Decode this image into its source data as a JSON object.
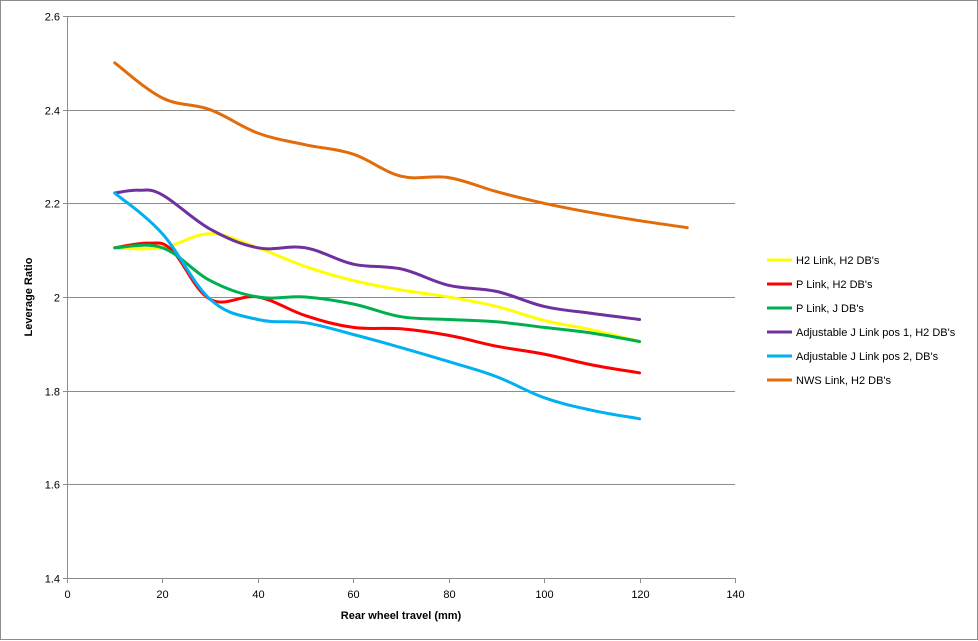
{
  "chart_data": {
    "type": "line",
    "title": "",
    "xlabel": "Rear wheel travel (mm)",
    "ylabel": "Leverage Ratio",
    "xlim": [
      0,
      140
    ],
    "ylim": [
      1.4,
      2.6
    ],
    "xticks": [
      0,
      20,
      40,
      60,
      80,
      100,
      120,
      140
    ],
    "yticks": [
      1.4,
      1.6,
      1.8,
      2,
      2.2,
      2.4,
      2.6
    ],
    "ytick_labels": [
      "1.4",
      "1.6",
      "1.8",
      "2",
      "2.2",
      "2.4",
      "2.6"
    ],
    "grid": "horizontal major gridlines",
    "legend_position": "right",
    "series": [
      {
        "name": "H2 Link, H2 DB's",
        "color": "#ffff00",
        "x": [
          10,
          20,
          30,
          40,
          50,
          60,
          70,
          80,
          90,
          100,
          110,
          120
        ],
        "values": [
          2.105,
          2.105,
          2.135,
          2.105,
          2.065,
          2.035,
          2.015,
          2.0,
          1.98,
          1.95,
          1.93,
          1.905
        ]
      },
      {
        "name": "P Link, H2 DB's",
        "color": "#ff0000",
        "x": [
          10,
          17,
          22,
          30,
          40,
          50,
          60,
          70,
          80,
          90,
          100,
          110,
          120
        ],
        "values": [
          2.105,
          2.115,
          2.1,
          1.995,
          2.0,
          1.96,
          1.935,
          1.932,
          1.918,
          1.895,
          1.878,
          1.855,
          1.838
        ]
      },
      {
        "name": "P Link, J DB's",
        "color": "#00b050",
        "x": [
          10,
          20,
          30,
          40,
          50,
          60,
          70,
          80,
          90,
          100,
          110,
          120
        ],
        "values": [
          2.105,
          2.105,
          2.035,
          2.0,
          2.0,
          1.985,
          1.958,
          1.952,
          1.947,
          1.935,
          1.923,
          1.905
        ]
      },
      {
        "name": "Adjustable J Link pos 1, H2 DB's",
        "color": "#7030a0",
        "x": [
          10,
          15,
          20,
          30,
          40,
          50,
          60,
          70,
          80,
          90,
          100,
          110,
          120
        ],
        "values": [
          2.222,
          2.228,
          2.218,
          2.145,
          2.105,
          2.105,
          2.07,
          2.06,
          2.025,
          2.012,
          1.98,
          1.965,
          1.952
        ]
      },
      {
        "name": "Adjustable J Link pos 2,  DB's",
        "color": "#00b0f0",
        "x": [
          10,
          20,
          30,
          40,
          50,
          60,
          70,
          80,
          90,
          100,
          110,
          120
        ],
        "values": [
          2.222,
          2.135,
          1.995,
          1.952,
          1.945,
          1.92,
          1.892,
          1.862,
          1.83,
          1.785,
          1.758,
          1.74
        ]
      },
      {
        "name": "NWS Link, H2 DB's",
        "color": "#e36c0a",
        "x": [
          10,
          20,
          30,
          40,
          50,
          60,
          70,
          80,
          90,
          100,
          110,
          120,
          130
        ],
        "values": [
          2.5,
          2.425,
          2.4,
          2.35,
          2.325,
          2.305,
          2.258,
          2.255,
          2.225,
          2.2,
          2.18,
          2.163,
          2.148
        ]
      }
    ]
  }
}
